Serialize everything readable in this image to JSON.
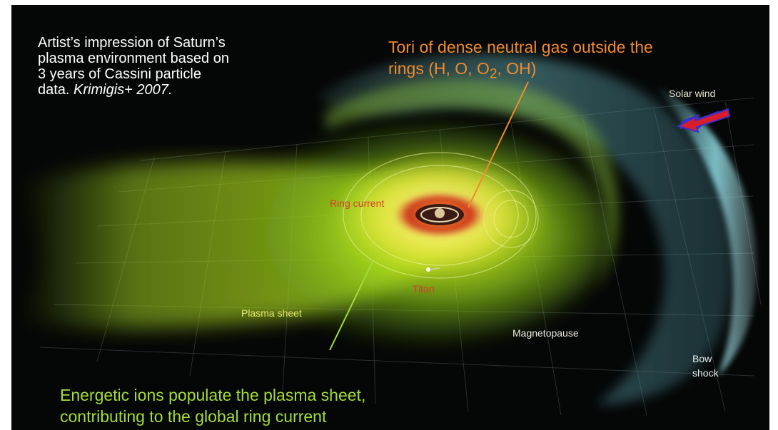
{
  "caption": {
    "line1": "Artist’s impression of Saturn’s",
    "line2": "plasma environment based on",
    "line3": "3 years of Cassini particle",
    "line4_plain": "data. ",
    "line4_italic": "Krimigis+ 2007."
  },
  "annotations": {
    "tori_line1": "Tori of dense neutral gas outside the",
    "tori_line2_pre": "rings (H, O, O",
    "tori_line2_sub": "2",
    "tori_line2_post": ", OH)",
    "ions_line1": "Energetic ions populate the plasma sheet,",
    "ions_line2": "contributing to the global ring current"
  },
  "labels": {
    "solar_wind": "Solar wind",
    "ring_current": "Ring current",
    "titan": "Titan",
    "plasma_sheet": "Plasma sheet",
    "magnetopause": "Magnetopause",
    "bow_line1": "Bow",
    "bow_line2": "shock"
  },
  "colors": {
    "background": "#050606",
    "caption_text": "#ffffff",
    "tori_text": "#f08a2e",
    "ions_text": "#a3dc3a",
    "plasma_green": "#b9e21c",
    "ring_orange": "#e8501c",
    "magnetosheath_teal": "#5aa6a6",
    "solar_wind_arrow": "#d81e2a"
  }
}
